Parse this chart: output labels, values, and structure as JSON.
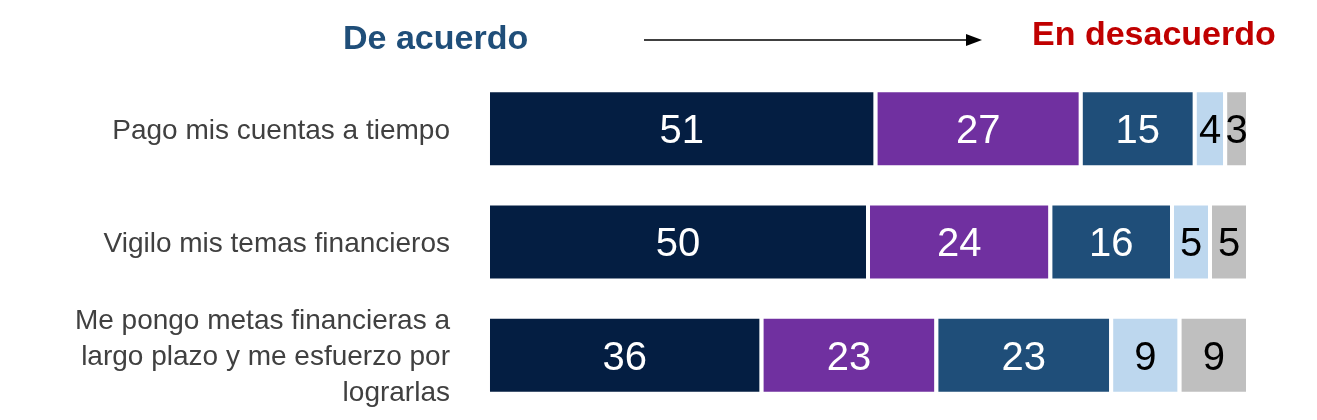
{
  "chart_data": {
    "type": "bar",
    "orientation": "horizontal",
    "stacked": true,
    "data_labels": true,
    "annotations": [
      "De acuerdo",
      "En desacuerdo"
    ],
    "categories": [
      "Pago mis cuentas a tiempo",
      "Vigilo mis temas financieros",
      "Me pongo metas financieras a largo plazo y me esfuerzo por lograrlas"
    ],
    "series": [
      {
        "color": "#041e42",
        "values": [
          51,
          50,
          36
        ]
      },
      {
        "color": "#7030a0",
        "values": [
          27,
          24,
          23
        ]
      },
      {
        "color": "#1f4e79",
        "values": [
          15,
          16,
          23
        ]
      },
      {
        "color": "#bdd7ee",
        "values": [
          4,
          5,
          9
        ]
      },
      {
        "color": "#bfbfbf",
        "values": [
          3,
          5,
          9
        ]
      }
    ]
  }
}
